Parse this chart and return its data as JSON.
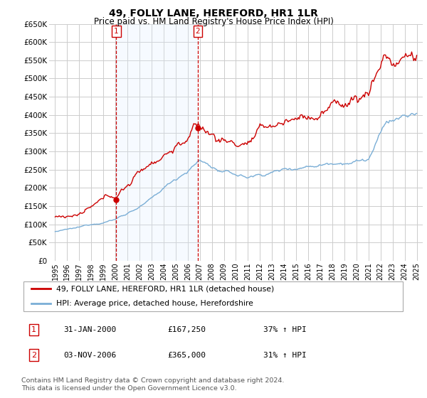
{
  "title": "49, FOLLY LANE, HEREFORD, HR1 1LR",
  "subtitle": "Price paid vs. HM Land Registry's House Price Index (HPI)",
  "ylim": [
    0,
    650000
  ],
  "yticks": [
    0,
    50000,
    100000,
    150000,
    200000,
    250000,
    300000,
    350000,
    400000,
    450000,
    500000,
    550000,
    600000,
    650000
  ],
  "ytick_labels": [
    "£0",
    "£50K",
    "£100K",
    "£150K",
    "£200K",
    "£250K",
    "£300K",
    "£350K",
    "£400K",
    "£450K",
    "£500K",
    "£550K",
    "£600K",
    "£650K"
  ],
  "background_color": "#ffffff",
  "grid_color": "#cccccc",
  "line1_color": "#cc0000",
  "line2_color": "#7aaed6",
  "shade_color": "#ddeeff",
  "sale1_year": 2000.08,
  "sale1_price": 167250,
  "sale2_year": 2006.84,
  "sale2_price": 365000,
  "legend_line1": "49, FOLLY LANE, HEREFORD, HR1 1LR (detached house)",
  "legend_line2": "HPI: Average price, detached house, Herefordshire",
  "table_rows": [
    [
      "1",
      "31-JAN-2000",
      "£167,250",
      "37% ↑ HPI"
    ],
    [
      "2",
      "03-NOV-2006",
      "£365,000",
      "31% ↑ HPI"
    ]
  ],
  "footnote1": "Contains HM Land Registry data © Crown copyright and database right 2024.",
  "footnote2": "This data is licensed under the Open Government Licence v3.0.",
  "title_fontsize": 10,
  "subtitle_fontsize": 8.5
}
